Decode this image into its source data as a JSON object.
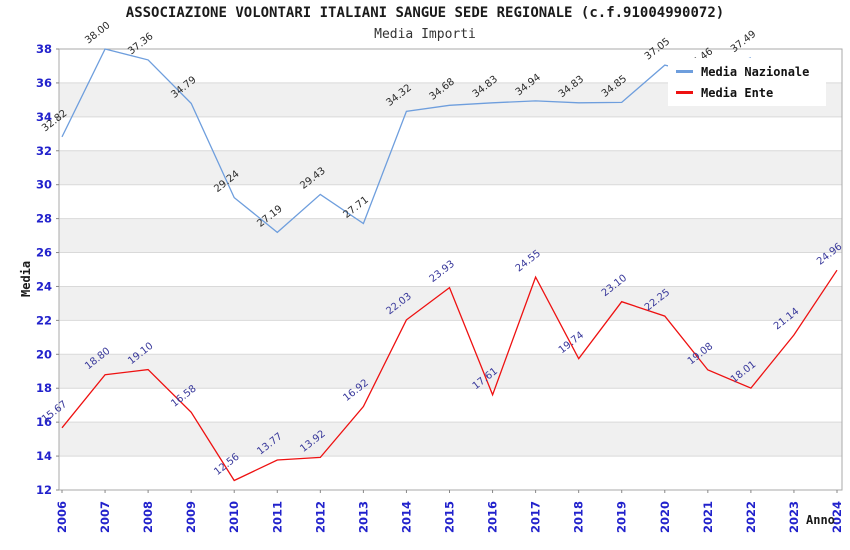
{
  "header": {
    "title": "ASSOCIAZIONE VOLONTARI ITALIANI SANGUE SEDE REGIONALE (c.f.91004990072)",
    "subtitle": "Media Importi"
  },
  "legend": [
    {
      "label": "Media Nazionale",
      "color": "#6e9edd"
    },
    {
      "label": "Media Ente",
      "color": "#ee1111"
    }
  ],
  "colors": {
    "axis_tick_label": "#2222cc",
    "plot_border": "#aaaaaa",
    "band_fill": "#f0f0f0",
    "gridline": "#d9d9d9",
    "national_line": "#6e9edd",
    "ente_line": "#ee1111",
    "national_data_label": "#2b2b2b",
    "ente_data_label": "#39399b"
  },
  "chart_data": {
    "type": "line",
    "title": "ASSOCIAZIONE VOLONTARI ITALIANI SANGUE SEDE REGIONALE (c.f.91004990072)",
    "subtitle": "Media Importi",
    "xlabel": "Anno",
    "ylabel": "Media",
    "ylim": [
      12,
      38
    ],
    "ytick_step": 2,
    "grid": "alternating-gray-bands",
    "legend_position": "top-right-inside",
    "x": [
      2006,
      2007,
      2008,
      2009,
      2010,
      2011,
      2012,
      2013,
      2014,
      2015,
      2016,
      2017,
      2018,
      2019,
      2020,
      2021,
      2022,
      2023,
      2024
    ],
    "series": [
      {
        "name": "Media Nazionale",
        "color": "#6e9edd",
        "label_color": "#2b2b2b",
        "values": [
          32.82,
          38.0,
          37.36,
          34.79,
          29.24,
          27.19,
          29.43,
          27.71,
          34.32,
          34.68,
          34.83,
          34.94,
          34.83,
          34.85,
          37.05,
          36.46,
          37.49,
          null,
          null
        ]
      },
      {
        "name": "Media Ente",
        "color": "#ee1111",
        "label_color": "#39399b",
        "values": [
          15.67,
          18.8,
          19.1,
          16.58,
          12.56,
          13.77,
          13.92,
          16.92,
          22.03,
          23.93,
          17.61,
          24.55,
          19.74,
          23.1,
          22.25,
          19.08,
          18.01,
          21.14,
          24.96
        ]
      }
    ]
  }
}
